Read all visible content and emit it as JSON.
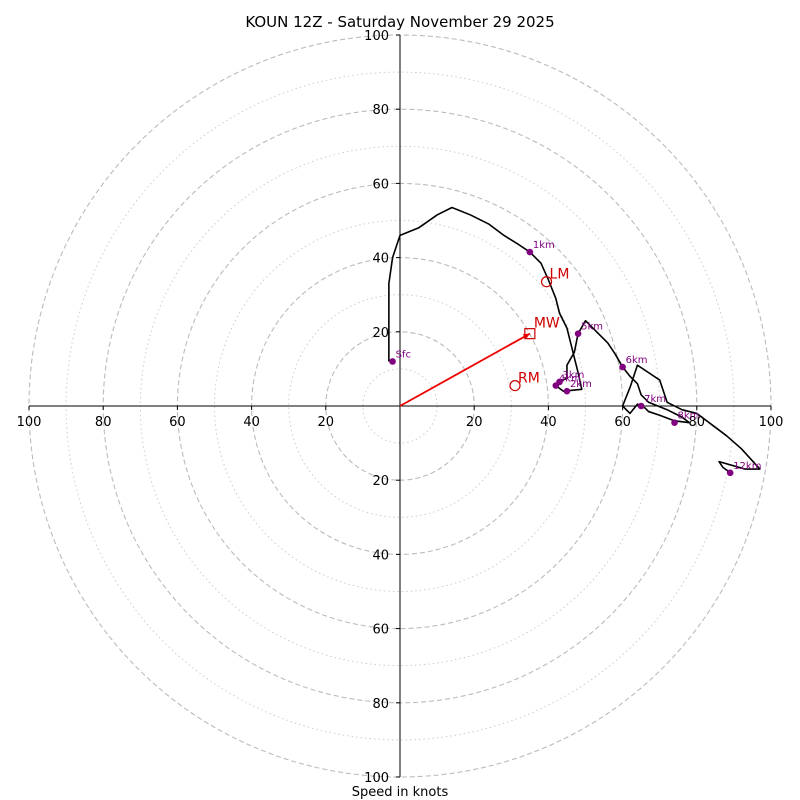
{
  "chart_data": {
    "type": "hodograph",
    "title": "KOUN 12Z - Saturday November 29 2025",
    "xlabel": "Speed in knots",
    "axis_range": [
      -100,
      100
    ],
    "ring_speeds_major": [
      20,
      40,
      60,
      80,
      100
    ],
    "ring_speeds_minor": [
      10,
      30,
      50,
      70,
      90
    ],
    "x_tick_labels": [
      {
        "value": -100,
        "label": "100"
      },
      {
        "value": -80,
        "label": "80"
      },
      {
        "value": -60,
        "label": "60"
      },
      {
        "value": -40,
        "label": "40"
      },
      {
        "value": -20,
        "label": "20"
      },
      {
        "value": 20,
        "label": "20"
      },
      {
        "value": 40,
        "label": "40"
      },
      {
        "value": 60,
        "label": "60"
      },
      {
        "value": 80,
        "label": "80"
      },
      {
        "value": 100,
        "label": "100"
      }
    ],
    "y_tick_labels": [
      {
        "value": 100,
        "label": "100"
      },
      {
        "value": 80,
        "label": "80"
      },
      {
        "value": 60,
        "label": "60"
      },
      {
        "value": 40,
        "label": "40"
      },
      {
        "value": 20,
        "label": "20"
      },
      {
        "value": -20,
        "label": "20"
      },
      {
        "value": -40,
        "label": "40"
      },
      {
        "value": -60,
        "label": "60"
      },
      {
        "value": -80,
        "label": "80"
      },
      {
        "value": -100,
        "label": "100"
      }
    ],
    "wind_trace": [
      [
        -3,
        12
      ],
      [
        -3,
        20
      ],
      [
        -3,
        33
      ],
      [
        -2,
        40
      ],
      [
        0,
        46
      ],
      [
        5,
        48
      ],
      [
        10,
        51.5
      ],
      [
        14,
        53.5
      ],
      [
        19,
        51.5
      ],
      [
        24,
        49
      ],
      [
        28,
        46
      ],
      [
        32,
        43.5
      ],
      [
        35,
        41.5
      ],
      [
        38,
        38.5
      ],
      [
        40,
        34
      ],
      [
        42,
        29
      ],
      [
        43,
        25
      ],
      [
        45,
        21
      ],
      [
        46,
        17
      ],
      [
        47,
        13
      ],
      [
        48,
        9
      ],
      [
        49,
        4.5
      ],
      [
        44,
        4
      ],
      [
        42,
        5.5
      ],
      [
        43,
        6.5
      ],
      [
        45,
        7.5
      ],
      [
        45,
        11
      ],
      [
        47,
        14.5
      ],
      [
        48,
        19.5
      ],
      [
        50,
        23
      ],
      [
        53,
        20
      ],
      [
        56,
        17
      ],
      [
        58,
        14
      ],
      [
        60,
        10.5
      ],
      [
        62,
        8
      ],
      [
        64,
        6
      ],
      [
        65,
        3
      ],
      [
        67,
        1
      ],
      [
        72,
        -1
      ],
      [
        76,
        -3
      ],
      [
        78,
        -4.5
      ],
      [
        74,
        -4
      ],
      [
        70,
        -2.5
      ],
      [
        67,
        -1.5
      ],
      [
        66,
        -0.5
      ],
      [
        64,
        0.5
      ],
      [
        62,
        -2
      ],
      [
        60,
        0
      ],
      [
        62,
        5
      ],
      [
        64,
        11
      ],
      [
        67,
        9
      ],
      [
        70,
        7
      ],
      [
        72,
        1
      ],
      [
        76,
        -1
      ],
      [
        80,
        -2
      ],
      [
        84,
        -5
      ],
      [
        88,
        -8
      ],
      [
        92,
        -11.5
      ],
      [
        97,
        -17
      ],
      [
        93,
        -17
      ],
      [
        86,
        -15
      ],
      [
        87,
        -16.5
      ],
      [
        89,
        -18
      ]
    ],
    "height_markers": [
      {
        "label": "Sfc",
        "u": -2,
        "v": 12
      },
      {
        "label": "1km",
        "u": 35,
        "v": 41.5
      },
      {
        "label": "2km",
        "u": 45,
        "v": 4
      },
      {
        "label": "3km",
        "u": 43,
        "v": 6.5
      },
      {
        "label": "4km",
        "u": 42,
        "v": 5.5
      },
      {
        "label": "5km",
        "u": 48,
        "v": 19.5
      },
      {
        "label": "6km",
        "u": 60,
        "v": 10.5
      },
      {
        "label": "7km",
        "u": 65,
        "v": 0
      },
      {
        "label": "8km",
        "u": 74,
        "v": -4.5
      },
      {
        "label": "12km",
        "u": 89,
        "v": -18
      }
    ],
    "storm_motion": {
      "mw": {
        "label": "MW",
        "u": 35,
        "v": 19.5
      },
      "lm": {
        "label": "LM",
        "u": 39.5,
        "v": 33.5
      },
      "rm": {
        "label": "RM",
        "u": 31,
        "v": 5.5
      }
    }
  },
  "colors": {
    "trace": "#000000",
    "marker": "#800080",
    "storm": "#cc0000",
    "vector": "#ee0000",
    "major_ring": "#bbbbbb",
    "minor_ring": "#cccccc",
    "axis": "#000000"
  }
}
